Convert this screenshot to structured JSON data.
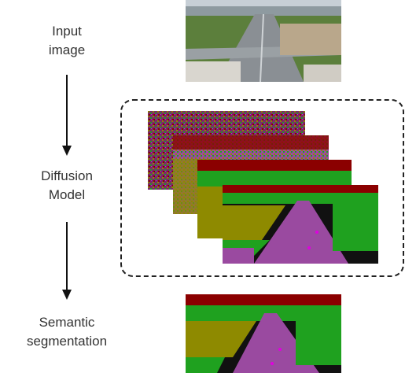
{
  "labels": {
    "input": "Input\nimage",
    "diffusion": "Diffusion\nModel",
    "segmentation": "Semantic\nsegmentation"
  },
  "colors": {
    "purple": "#9a4aa0",
    "olive": "#8e8a00",
    "green": "#1fa11f",
    "dark_red": "#8b0000",
    "black": "#111111",
    "magenta": "#e000e0",
    "sky": "#c7cfd6",
    "field": "#5c7f3c",
    "road": "#8a8f94"
  }
}
